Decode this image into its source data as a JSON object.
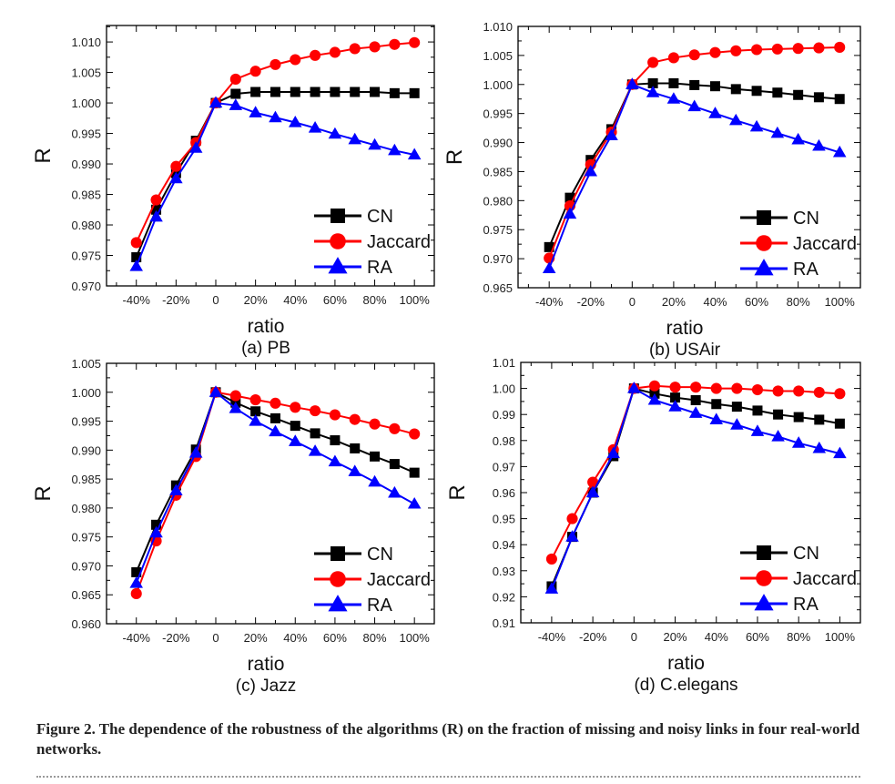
{
  "chart_data": [
    {
      "type": "line",
      "caption": "(a) PB",
      "xlabel": "ratio",
      "ylabel": "R",
      "x": [
        -40,
        -30,
        -20,
        -10,
        0,
        10,
        20,
        30,
        40,
        50,
        60,
        70,
        80,
        90,
        100
      ],
      "xticks": [
        -40,
        -20,
        0,
        20,
        40,
        60,
        80,
        100
      ],
      "xtick_labels": [
        "-40%",
        "-20%",
        "0",
        "20%",
        "40%",
        "60%",
        "80%",
        "100%"
      ],
      "ylim": [
        0.97,
        1.0127
      ],
      "yticks": [
        "0.970",
        "0.975",
        "0.980",
        "0.985",
        "0.990",
        "0.995",
        "1.000",
        "1.005",
        "1.010"
      ],
      "legend": "bottom-right",
      "series": [
        {
          "name": "CN",
          "color": "#000000",
          "marker": "square",
          "values": [
            0.9747,
            0.9825,
            0.9885,
            0.9938,
            1.0,
            1.0015,
            1.0018,
            1.0018,
            1.0018,
            1.0018,
            1.0018,
            1.0018,
            1.0018,
            1.0016,
            1.0016
          ]
        },
        {
          "name": "Jaccard",
          "color": "#ff0000",
          "marker": "circle",
          "values": [
            0.9771,
            0.9841,
            0.9896,
            0.9935,
            1.0,
            1.0039,
            1.0052,
            1.0063,
            1.0071,
            1.0078,
            1.0083,
            1.0089,
            1.0092,
            1.0096,
            1.0099
          ]
        },
        {
          "name": "RA",
          "color": "#0000ff",
          "marker": "triangle",
          "values": [
            0.9732,
            0.9813,
            0.9876,
            0.9926,
            1.0,
            0.9996,
            0.9984,
            0.9976,
            0.9968,
            0.9959,
            0.9949,
            0.994,
            0.9931,
            0.9922,
            0.9915
          ]
        }
      ]
    },
    {
      "type": "line",
      "caption": "(b) USAir",
      "xlabel": "ratio",
      "ylabel": "R",
      "x": [
        -40,
        -30,
        -20,
        -10,
        0,
        10,
        20,
        30,
        40,
        50,
        60,
        70,
        80,
        90,
        100
      ],
      "xticks": [
        -40,
        -20,
        0,
        20,
        40,
        60,
        80,
        100
      ],
      "xtick_labels": [
        "-40%",
        "-20%",
        "0",
        "20%",
        "40%",
        "60%",
        "80%",
        "100%"
      ],
      "ylim": [
        0.965,
        1.01
      ],
      "yticks": [
        "0.965",
        "0.970",
        "0.975",
        "0.980",
        "0.985",
        "0.990",
        "0.995",
        "1.000",
        "1.005",
        "1.010"
      ],
      "legend": "bottom-right",
      "series": [
        {
          "name": "CN",
          "color": "#000000",
          "marker": "square",
          "values": [
            0.972,
            0.9805,
            0.987,
            0.9923,
            1.0,
            1.0002,
            1.0002,
            0.9999,
            0.9997,
            0.9992,
            0.9989,
            0.9986,
            0.9982,
            0.9978,
            0.9975
          ]
        },
        {
          "name": "Jaccard",
          "color": "#ff0000",
          "marker": "circle",
          "values": [
            0.9701,
            0.9791,
            0.9862,
            0.9918,
            1.0,
            1.0038,
            1.0046,
            1.0051,
            1.0055,
            1.0058,
            1.006,
            1.0061,
            1.0062,
            1.0063,
            1.0064
          ]
        },
        {
          "name": "RA",
          "color": "#0000ff",
          "marker": "triangle",
          "values": [
            0.9683,
            0.9777,
            0.985,
            0.9912,
            1.0,
            0.9986,
            0.9975,
            0.9962,
            0.995,
            0.9938,
            0.9927,
            0.9916,
            0.9905,
            0.9894,
            0.9883
          ]
        }
      ]
    },
    {
      "type": "line",
      "caption": "(c) Jazz",
      "xlabel": "ratio",
      "ylabel": "R",
      "x": [
        -40,
        -30,
        -20,
        -10,
        0,
        10,
        20,
        30,
        40,
        50,
        60,
        70,
        80,
        90,
        100
      ],
      "xticks": [
        -40,
        -20,
        0,
        20,
        40,
        60,
        80,
        100
      ],
      "xtick_labels": [
        "-40%",
        "-20%",
        "0",
        "20%",
        "40%",
        "60%",
        "80%",
        "100%"
      ],
      "ylim": [
        0.96,
        1.005
      ],
      "yticks": [
        "0.960",
        "0.965",
        "0.970",
        "0.975",
        "0.980",
        "0.985",
        "0.990",
        "0.995",
        "1.000",
        "1.005"
      ],
      "legend": "bottom-right",
      "series": [
        {
          "name": "CN",
          "color": "#000000",
          "marker": "square",
          "values": [
            0.9689,
            0.9771,
            0.9839,
            0.9901,
            1.0,
            0.9982,
            0.9967,
            0.9955,
            0.9942,
            0.9929,
            0.9917,
            0.9903,
            0.9889,
            0.9876,
            0.9861
          ]
        },
        {
          "name": "Jaccard",
          "color": "#ff0000",
          "marker": "circle",
          "values": [
            0.9652,
            0.9743,
            0.9822,
            0.9889,
            1.0,
            0.9994,
            0.9987,
            0.9981,
            0.9974,
            0.9968,
            0.9961,
            0.9953,
            0.9945,
            0.9937,
            0.9928
          ]
        },
        {
          "name": "RA",
          "color": "#0000ff",
          "marker": "triangle",
          "values": [
            0.967,
            0.9757,
            0.983,
            0.9895,
            1.0,
            0.9972,
            0.995,
            0.9932,
            0.9915,
            0.9898,
            0.988,
            0.9863,
            0.9845,
            0.9826,
            0.9807
          ]
        }
      ]
    },
    {
      "type": "line",
      "caption": "(d) C.elegans",
      "xlabel": "ratio",
      "ylabel": "R",
      "x": [
        -40,
        -30,
        -20,
        -10,
        0,
        10,
        20,
        30,
        40,
        50,
        60,
        70,
        80,
        90,
        100
      ],
      "xticks": [
        -40,
        -20,
        0,
        20,
        40,
        60,
        80,
        100
      ],
      "xtick_labels": [
        "-40%",
        "-20%",
        "0",
        "20%",
        "40%",
        "60%",
        "80%",
        "100%"
      ],
      "ylim": [
        0.91,
        1.01
      ],
      "yticks": [
        "0.91",
        "0.92",
        "0.93",
        "0.94",
        "0.95",
        "0.96",
        "0.97",
        "0.98",
        "0.99",
        "1.00",
        "1.01"
      ],
      "legend": "bottom-right",
      "series": [
        {
          "name": "CN",
          "color": "#000000",
          "marker": "square",
          "values": [
            0.924,
            0.943,
            0.96,
            0.974,
            1.0,
            0.998,
            0.9965,
            0.9955,
            0.994,
            0.993,
            0.9915,
            0.99,
            0.989,
            0.988,
            0.9865
          ]
        },
        {
          "name": "Jaccard",
          "color": "#ff0000",
          "marker": "circle",
          "values": [
            0.9345,
            0.95,
            0.964,
            0.9765,
            1.0,
            1.001,
            1.0005,
            1.0005,
            1.0,
            1.0,
            0.9995,
            0.999,
            0.999,
            0.9985,
            0.998
          ]
        },
        {
          "name": "RA",
          "color": "#0000ff",
          "marker": "triangle",
          "values": [
            0.923,
            0.943,
            0.96,
            0.975,
            1.0,
            0.9955,
            0.993,
            0.9905,
            0.988,
            0.986,
            0.9835,
            0.9815,
            0.979,
            0.977,
            0.975
          ]
        }
      ]
    }
  ],
  "figure_caption": "Figure 2.  The dependence of the robustness of the algorithms (R) on the fraction of missing and noisy links in four real-world networks."
}
